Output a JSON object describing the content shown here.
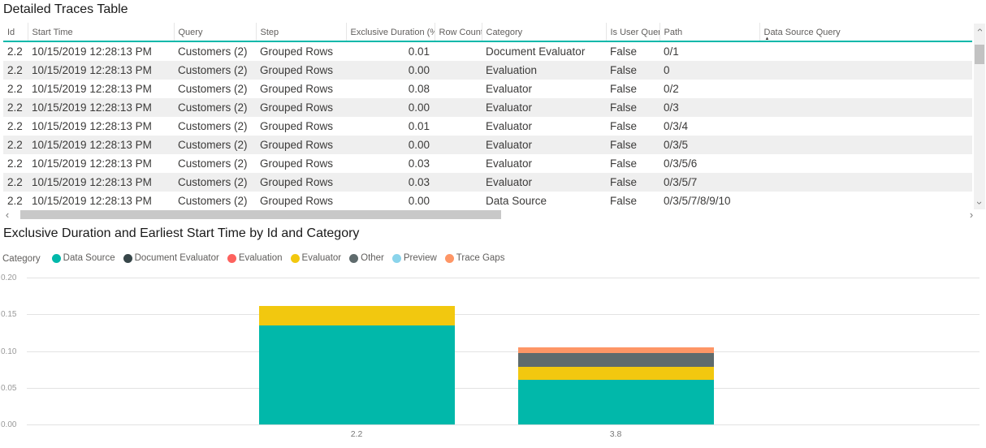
{
  "theme": {
    "accent": "#01B8AA",
    "alt_row": "#efefef",
    "header_text": "#605E5C",
    "row_text": "#3b3a39"
  },
  "table_section": {
    "title": "Detailed Traces Table",
    "columns": [
      {
        "key": "id",
        "label": "Id",
        "align": "left"
      },
      {
        "key": "start_time",
        "label": "Start Time",
        "align": "left"
      },
      {
        "key": "query",
        "label": "Query",
        "align": "left"
      },
      {
        "key": "step",
        "label": "Step",
        "align": "left"
      },
      {
        "key": "exclusive_duration",
        "label": "Exclusive Duration (%)",
        "align": "right"
      },
      {
        "key": "row_count",
        "label": "Row Count",
        "align": "right"
      },
      {
        "key": "category",
        "label": "Category",
        "align": "left"
      },
      {
        "key": "is_user_query",
        "label": "Is User Query",
        "align": "left"
      },
      {
        "key": "path",
        "label": "Path",
        "align": "left"
      },
      {
        "key": "data_source_query",
        "label": "Data Source Query",
        "align": "left",
        "sorted": "asc"
      }
    ],
    "rows": [
      [
        "2.2",
        "10/15/2019 12:28:13 PM",
        "Customers (2)",
        "Grouped Rows",
        "0.01",
        "",
        "Document Evaluator",
        "False",
        "0/1",
        ""
      ],
      [
        "2.2",
        "10/15/2019 12:28:13 PM",
        "Customers (2)",
        "Grouped Rows",
        "0.00",
        "",
        "Evaluation",
        "False",
        "0",
        ""
      ],
      [
        "2.2",
        "10/15/2019 12:28:13 PM",
        "Customers (2)",
        "Grouped Rows",
        "0.08",
        "",
        "Evaluator",
        "False",
        "0/2",
        ""
      ],
      [
        "2.2",
        "10/15/2019 12:28:13 PM",
        "Customers (2)",
        "Grouped Rows",
        "0.00",
        "",
        "Evaluator",
        "False",
        "0/3",
        ""
      ],
      [
        "2.2",
        "10/15/2019 12:28:13 PM",
        "Customers (2)",
        "Grouped Rows",
        "0.01",
        "",
        "Evaluator",
        "False",
        "0/3/4",
        ""
      ],
      [
        "2.2",
        "10/15/2019 12:28:13 PM",
        "Customers (2)",
        "Grouped Rows",
        "0.00",
        "",
        "Evaluator",
        "False",
        "0/3/5",
        ""
      ],
      [
        "2.2",
        "10/15/2019 12:28:13 PM",
        "Customers (2)",
        "Grouped Rows",
        "0.03",
        "",
        "Evaluator",
        "False",
        "0/3/5/6",
        ""
      ],
      [
        "2.2",
        "10/15/2019 12:28:13 PM",
        "Customers (2)",
        "Grouped Rows",
        "0.03",
        "",
        "Evaluator",
        "False",
        "0/3/5/7",
        ""
      ],
      [
        "2.2",
        "10/15/2019 12:28:13 PM",
        "Customers (2)",
        "Grouped Rows",
        "0.00",
        "",
        "Data Source",
        "False",
        "0/3/5/7/8/9/10",
        ""
      ]
    ]
  },
  "chart_section": {
    "legend_title": "Category"
  },
  "chart_data": {
    "type": "bar",
    "stacked": true,
    "title": "Exclusive Duration and Earliest Start Time by Id and Category",
    "xlabel": "",
    "ylabel": "",
    "categories": [
      "2.2",
      "3.8"
    ],
    "series": [
      {
        "name": "Data Source",
        "color": "#01B8AA",
        "values": [
          0.135,
          0.061
        ]
      },
      {
        "name": "Evaluator",
        "color": "#F2C80F",
        "values": [
          0.026,
          0.018
        ]
      },
      {
        "name": "Other",
        "color": "#5F6B6D",
        "values": [
          0,
          0.019
        ]
      },
      {
        "name": "Trace Gaps",
        "color": "#FE9666",
        "values": [
          0,
          0.008
        ]
      }
    ],
    "totals": {
      "2.2": 0.161,
      "3.8": 0.106
    },
    "legend": [
      {
        "name": "Data Source",
        "color": "#01B8AA"
      },
      {
        "name": "Document Evaluator",
        "color": "#374649"
      },
      {
        "name": "Evaluation",
        "color": "#FD625E"
      },
      {
        "name": "Evaluator",
        "color": "#F2C80F"
      },
      {
        "name": "Other",
        "color": "#5F6B6D"
      },
      {
        "name": "Preview",
        "color": "#8AD4EB"
      },
      {
        "name": "Trace Gaps",
        "color": "#FE9666"
      }
    ],
    "yticks": [
      {
        "label": "0.00",
        "value": 0.0
      },
      {
        "label": "0.05",
        "value": 0.05
      },
      {
        "label": "0.10",
        "value": 0.1
      },
      {
        "label": "0.15",
        "value": 0.15
      },
      {
        "label": "0.20",
        "value": 0.2
      }
    ],
    "ylim": [
      0,
      0.2
    ],
    "grid": true,
    "legend_position": "top-left"
  },
  "scrollbar": {
    "sort_ascending_glyph": "▲",
    "left_glyph": "‹",
    "right_glyph": "›",
    "up_glyph": "›",
    "down_glyph": "›"
  }
}
